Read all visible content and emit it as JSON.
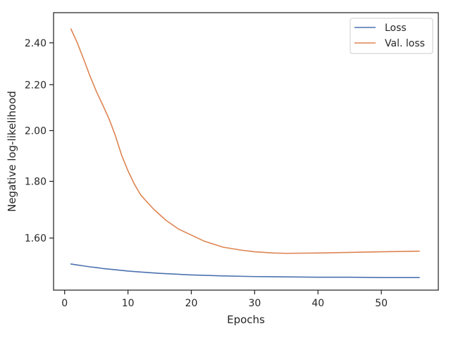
{
  "chart_data": {
    "type": "line",
    "xlabel": "Epochs",
    "ylabel": "Negative log-likelihood",
    "x_scale": "linear",
    "y_scale": "log",
    "xlim": [
      -1.75,
      59.0
    ],
    "ylim": [
      1.436,
      2.555
    ],
    "xticks": [
      0,
      10,
      20,
      30,
      40,
      50
    ],
    "xtick_labels": [
      "0",
      "10",
      "20",
      "30",
      "40",
      "50"
    ],
    "yticks": [
      1.6,
      1.8,
      2.0,
      2.2,
      2.4
    ],
    "ytick_labels": [
      "1.60",
      "1.80",
      "2.00",
      "2.20",
      "2.40"
    ],
    "grid": false,
    "legend_position": "top-right",
    "series": [
      {
        "name": "Loss",
        "color": "#4c72b0",
        "x": [
          1,
          2,
          3,
          4,
          5,
          6,
          7,
          8,
          10,
          12,
          15,
          20,
          25,
          30,
          35,
          40,
          45,
          50,
          56
        ],
        "values": [
          1.516,
          1.513,
          1.51,
          1.507,
          1.505,
          1.502,
          1.5,
          1.498,
          1.494,
          1.491,
          1.487,
          1.482,
          1.479,
          1.477,
          1.476,
          1.475,
          1.475,
          1.474,
          1.474
        ]
      },
      {
        "name": "Val. loss",
        "color": "#dd8452",
        "x": [
          1,
          2,
          3,
          4,
          5,
          6,
          7,
          8,
          9,
          10,
          11,
          12,
          14,
          16,
          18,
          20,
          22,
          25,
          28,
          30,
          33,
          35,
          40,
          45,
          50,
          56
        ],
        "values": [
          2.47,
          2.4,
          2.32,
          2.24,
          2.17,
          2.11,
          2.05,
          1.98,
          1.9,
          1.84,
          1.79,
          1.75,
          1.7,
          1.66,
          1.63,
          1.61,
          1.59,
          1.57,
          1.56,
          1.555,
          1.551,
          1.55,
          1.551,
          1.553,
          1.555,
          1.557
        ]
      }
    ]
  }
}
